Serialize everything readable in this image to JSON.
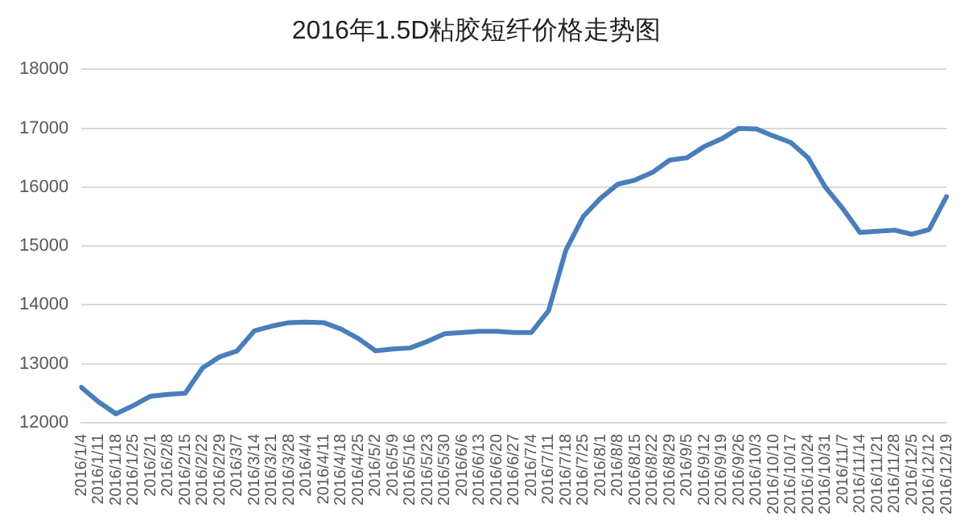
{
  "chart_data": {
    "type": "line",
    "title": "2016年1.5D粘胶短纤价格走势图",
    "categories": [
      "2016/1/4",
      "2016/1/11",
      "2016/1/18",
      "2016/1/25",
      "2016/2/1",
      "2016/2/8",
      "2016/2/15",
      "2016/2/22",
      "2016/2/29",
      "2016/3/7",
      "2016/3/14",
      "2016/3/21",
      "2016/3/28",
      "2016/4/4",
      "2016/4/11",
      "2016/4/18",
      "2016/4/25",
      "2016/5/2",
      "2016/5/9",
      "2016/5/16",
      "2016/5/23",
      "2016/5/30",
      "2016/6/6",
      "2016/6/13",
      "2016/6/20",
      "2016/6/27",
      "2016/7/4",
      "2016/7/11",
      "2016/7/18",
      "2016/7/25",
      "2016/8/1",
      "2016/8/8",
      "2016/8/15",
      "2016/8/22",
      "2016/8/29",
      "2016/9/5",
      "2016/9/12",
      "2016/9/19",
      "2016/9/26",
      "2016/10/3",
      "2016/10/10",
      "2016/10/17",
      "2016/10/24",
      "2016/10/31",
      "2016/11/7",
      "2016/11/14",
      "2016/11/21",
      "2016/11/28",
      "2016/12/5",
      "2016/12/12",
      "2016/12/19"
    ],
    "series": [
      {
        "color": "#4a7ebb",
        "values": [
          12600,
          12350,
          12150,
          12290,
          12450,
          12480,
          12500,
          12930,
          13120,
          13220,
          13560,
          13640,
          13700,
          13710,
          13700,
          13590,
          13430,
          13220,
          13250,
          13270,
          13380,
          13510,
          13530,
          13550,
          13550,
          13530,
          13530,
          13900,
          14930,
          15500,
          15810,
          16050,
          16120,
          16250,
          16460,
          16500,
          16690,
          16820,
          17000,
          16990,
          16870,
          16760,
          16500,
          16000,
          15640,
          15230,
          15250,
          15270,
          15200,
          15280,
          15840
        ]
      }
    ],
    "ylim": [
      12000,
      18000
    ],
    "yticks": [
      12000,
      13000,
      14000,
      15000,
      16000,
      17000,
      18000
    ],
    "grid": "y",
    "legend": false,
    "marker": "none",
    "line_style": "solid"
  }
}
